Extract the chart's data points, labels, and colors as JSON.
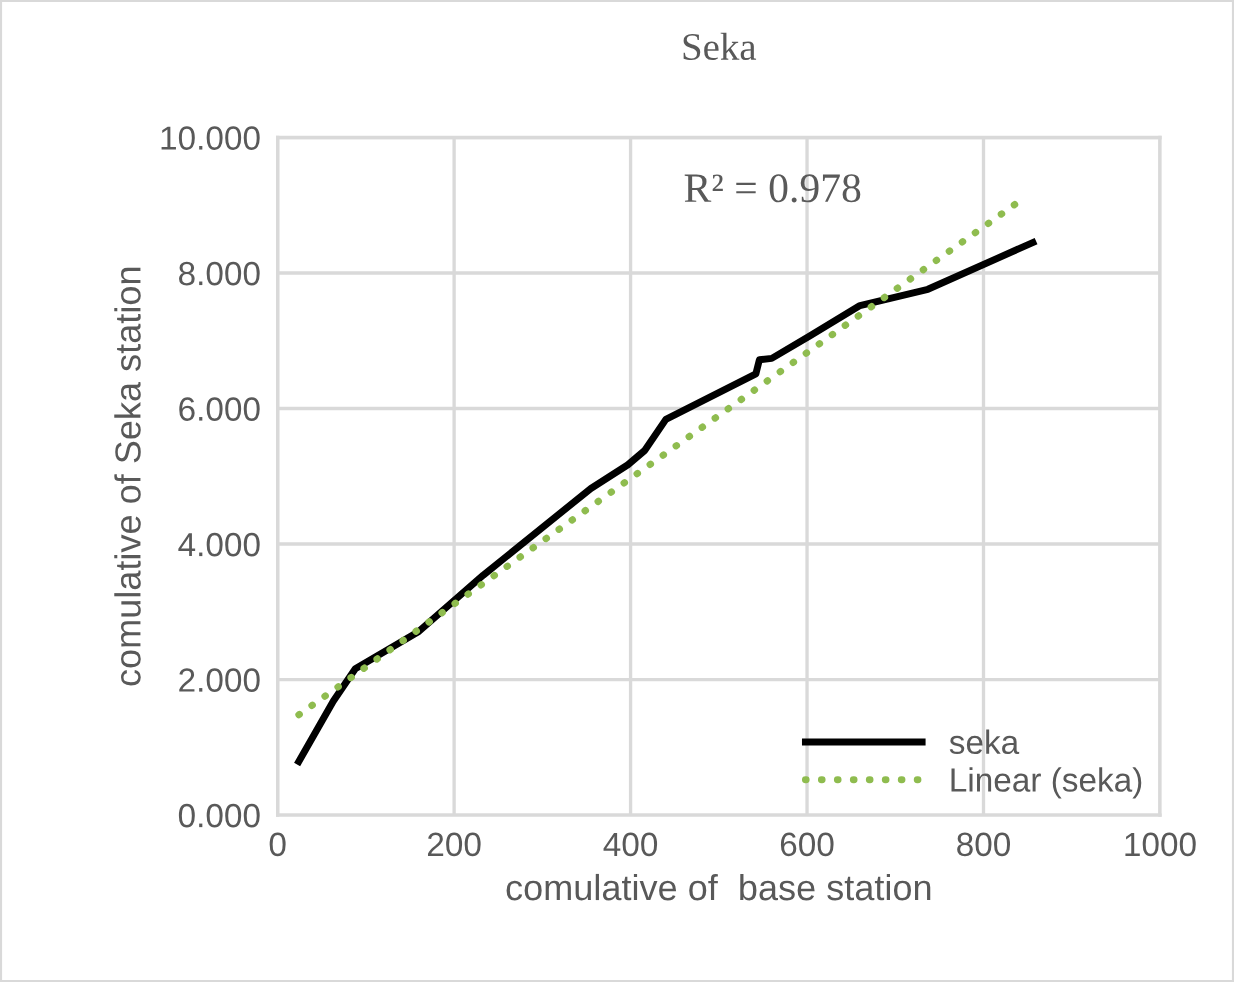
{
  "chart_data": {
    "type": "line",
    "title": "Seka",
    "xlabel": "comulative of  base station",
    "ylabel": "comulative of Seka station",
    "annotations": [
      "R² = 0.978"
    ],
    "series": [
      {
        "name": "seka",
        "color": "#000000",
        "line_style": "solid",
        "x": [
          24,
          63,
          88,
          160,
          233,
          355,
          397,
          416,
          440,
          542,
          546,
          560,
          603,
          660,
          737,
          856
        ],
        "values": [
          0.79,
          1.68,
          2.16,
          2.71,
          3.54,
          4.82,
          5.17,
          5.38,
          5.84,
          6.51,
          6.72,
          6.74,
          7.07,
          7.52,
          7.76,
          8.45
        ]
      },
      {
        "name": "Linear (seka)",
        "color": "#8fbc4f",
        "line_style": "dotted",
        "x": [
          24,
          844
        ],
        "values": [
          1.48,
          9.09
        ]
      }
    ],
    "xlim": [
      0,
      1000
    ],
    "xticks": [
      0,
      200,
      400,
      600,
      800,
      1000
    ],
    "ylim": [
      0,
      10
    ],
    "yticks": [
      {
        "value": 0,
        "label": "0.000"
      },
      {
        "value": 2,
        "label": "2.000"
      },
      {
        "value": 4,
        "label": "4.000"
      },
      {
        "value": 6,
        "label": "6.000"
      },
      {
        "value": 8,
        "label": "8.000"
      },
      {
        "value": 10,
        "label": "10.000"
      }
    ],
    "grid": true,
    "legend": "bottom right",
    "marker": "none"
  }
}
